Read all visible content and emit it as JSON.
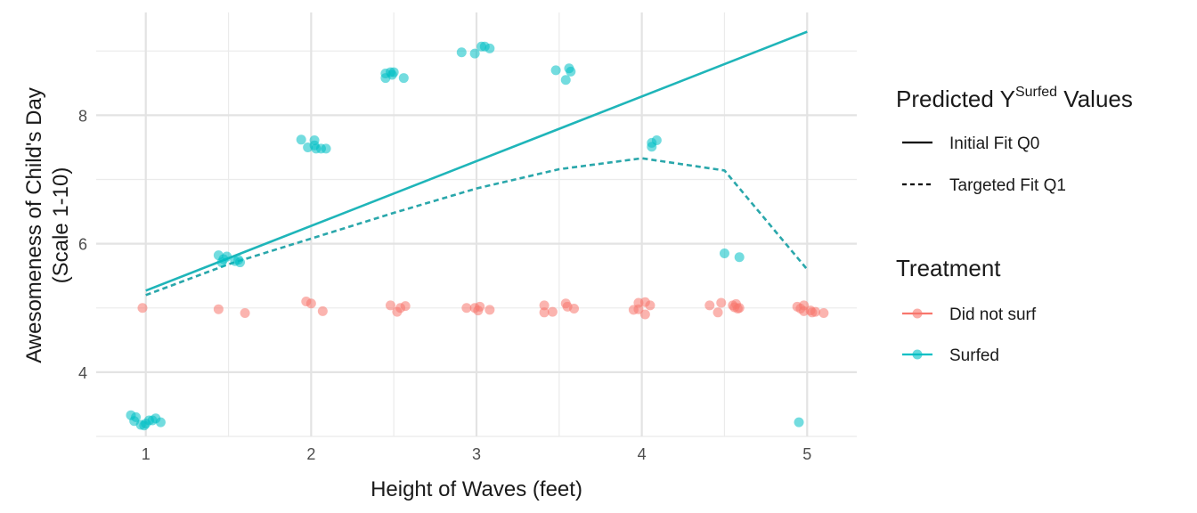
{
  "chart_data": {
    "type": "scatter",
    "xlabel": "Height of Waves (feet)",
    "ylabel_line1": "Awesomeness of Child's Day",
    "ylabel_line2": "(Scale 1-10)",
    "xlim": [
      0.7,
      5.3
    ],
    "ylim": [
      3.0,
      9.6
    ],
    "x_ticks": [
      1,
      2,
      3,
      4,
      5
    ],
    "y_ticks": [
      4,
      6,
      8
    ],
    "x_tick_labels": [
      "1",
      "2",
      "3",
      "4",
      "5"
    ],
    "y_tick_labels": [
      "4",
      "6",
      "8"
    ],
    "grid": true,
    "legend_placement": "right",
    "colors": {
      "did_not_surf": "#F8766D",
      "surfed": "#00BFC4"
    },
    "legend_lines": {
      "title_main": "Predicted Y",
      "title_sup": "Surfed",
      "title_end": " Values",
      "items": [
        {
          "label": "Initial Fit Q0",
          "style": "solid"
        },
        {
          "label": "Targeted Fit Q1",
          "style": "dashed"
        }
      ]
    },
    "legend_treatment": {
      "title": "Treatment",
      "items": [
        {
          "label": "Did not surf",
          "color": "#F8766D"
        },
        {
          "label": "Surfed",
          "color": "#00BFC4"
        }
      ]
    },
    "lines": [
      {
        "name": "Initial Fit Q0",
        "style": "solid",
        "color": "#1fb5b9",
        "x": [
          1,
          5
        ],
        "y": [
          5.27,
          9.3
        ]
      },
      {
        "name": "Targeted Fit Q1",
        "style": "dashed",
        "color": "#2aa7ab",
        "x": [
          1,
          1.5,
          2,
          2.5,
          3,
          3.5,
          4,
          4.5,
          5
        ],
        "y": [
          5.2,
          5.68,
          6.08,
          6.48,
          6.86,
          7.16,
          7.33,
          7.14,
          5.6
        ]
      }
    ],
    "series": [
      {
        "name": "Did not surf",
        "color": "#F8766D",
        "points": [
          [
            0.98,
            5.0
          ],
          [
            1.44,
            4.98
          ],
          [
            1.6,
            4.92
          ],
          [
            1.97,
            5.1
          ],
          [
            2.0,
            5.07
          ],
          [
            2.07,
            4.95
          ],
          [
            2.48,
            5.04
          ],
          [
            2.52,
            4.94
          ],
          [
            2.54,
            5.0
          ],
          [
            2.57,
            5.03
          ],
          [
            2.94,
            5.0
          ],
          [
            2.99,
            5.0
          ],
          [
            3.01,
            4.96
          ],
          [
            3.02,
            5.02
          ],
          [
            3.08,
            4.97
          ],
          [
            3.41,
            4.93
          ],
          [
            3.41,
            5.04
          ],
          [
            3.46,
            4.94
          ],
          [
            3.54,
            5.07
          ],
          [
            3.55,
            5.02
          ],
          [
            3.59,
            4.99
          ],
          [
            3.95,
            4.97
          ],
          [
            3.98,
            5.08
          ],
          [
            3.98,
            4.98
          ],
          [
            4.02,
            5.09
          ],
          [
            4.02,
            4.9
          ],
          [
            4.05,
            5.04
          ],
          [
            4.41,
            5.04
          ],
          [
            4.46,
            4.93
          ],
          [
            4.48,
            5.08
          ],
          [
            4.55,
            5.04
          ],
          [
            4.56,
            5.01
          ],
          [
            4.57,
            5.06
          ],
          [
            4.58,
            4.99
          ],
          [
            4.59,
            5.0
          ],
          [
            4.94,
            5.02
          ],
          [
            4.96,
            4.99
          ],
          [
            4.98,
            5.04
          ],
          [
            4.98,
            4.95
          ],
          [
            5.02,
            4.96
          ],
          [
            5.03,
            4.93
          ],
          [
            5.05,
            4.94
          ],
          [
            5.1,
            4.92
          ]
        ]
      },
      {
        "name": "Surfed",
        "color": "#00BFC4",
        "points": [
          [
            0.91,
            3.33
          ],
          [
            0.93,
            3.24
          ],
          [
            0.94,
            3.3
          ],
          [
            0.97,
            3.18
          ],
          [
            0.99,
            3.17
          ],
          [
            1.0,
            3.2
          ],
          [
            1.02,
            3.25
          ],
          [
            1.04,
            3.25
          ],
          [
            1.06,
            3.28
          ],
          [
            1.09,
            3.22
          ],
          [
            1.44,
            5.82
          ],
          [
            1.46,
            5.71
          ],
          [
            1.47,
            5.76
          ],
          [
            1.49,
            5.8
          ],
          [
            1.54,
            5.73
          ],
          [
            1.56,
            5.75
          ],
          [
            1.57,
            5.71
          ],
          [
            1.94,
            7.62
          ],
          [
            1.98,
            7.5
          ],
          [
            2.02,
            7.61
          ],
          [
            2.02,
            7.53
          ],
          [
            2.03,
            7.48
          ],
          [
            2.06,
            7.48
          ],
          [
            2.09,
            7.48
          ],
          [
            2.45,
            8.58
          ],
          [
            2.45,
            8.65
          ],
          [
            2.48,
            8.67
          ],
          [
            2.49,
            8.63
          ],
          [
            2.5,
            8.67
          ],
          [
            2.56,
            8.58
          ],
          [
            2.91,
            8.98
          ],
          [
            2.99,
            8.96
          ],
          [
            3.03,
            9.07
          ],
          [
            3.05,
            9.07
          ],
          [
            3.08,
            9.04
          ],
          [
            3.48,
            8.7
          ],
          [
            3.54,
            8.55
          ],
          [
            3.56,
            8.73
          ],
          [
            3.57,
            8.68
          ],
          [
            4.06,
            7.51
          ],
          [
            4.06,
            7.57
          ],
          [
            4.09,
            7.61
          ],
          [
            4.5,
            5.85
          ],
          [
            4.59,
            5.79
          ],
          [
            4.95,
            3.22
          ]
        ]
      }
    ]
  }
}
